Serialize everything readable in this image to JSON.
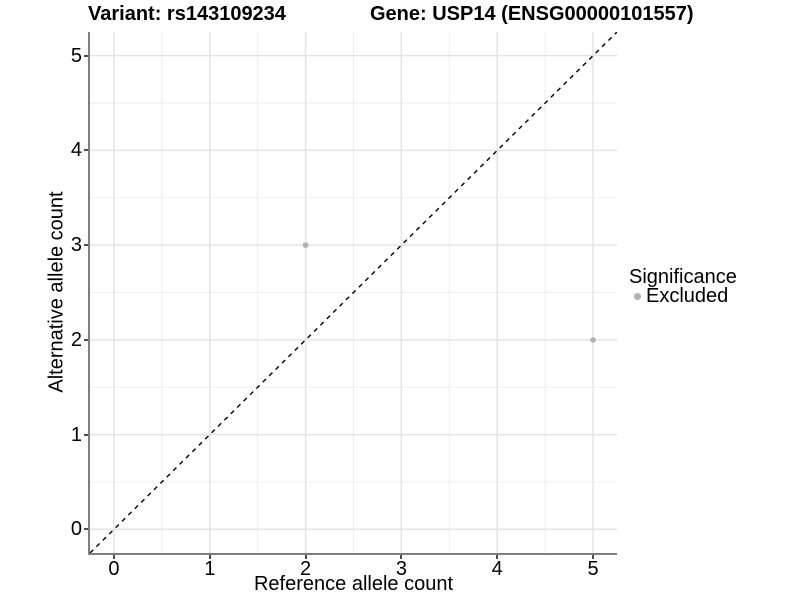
{
  "title": {
    "left": "Variant: rs143109234",
    "right": "Gene: USP14 (ENSG00000101557)"
  },
  "chart_data": {
    "type": "scatter",
    "title": "Variant: rs143109234   Gene: USP14 (ENSG00000101557)",
    "xlabel": "Reference allele count",
    "ylabel": "Alternative allele count",
    "xlim": [
      -0.25,
      5.25
    ],
    "ylim": [
      -0.25,
      5.25
    ],
    "x_ticks": [
      0,
      1,
      2,
      3,
      4,
      5
    ],
    "y_ticks": [
      0,
      1,
      2,
      3,
      4,
      5
    ],
    "minor_gridlines": [
      0.5,
      1.5,
      2.5,
      3.5,
      4.5
    ],
    "grid": "major+minor",
    "series": [
      {
        "name": "Excluded",
        "points": [
          {
            "x": 2,
            "y": 3
          },
          {
            "x": 5,
            "y": 2
          }
        ]
      }
    ],
    "identity_line": {
      "style": "dashed",
      "from": [
        -0.25,
        -0.25
      ],
      "to": [
        5.25,
        5.25
      ]
    },
    "legend": {
      "title": "Significance",
      "position": "right",
      "items": [
        {
          "label": "Excluded",
          "color": "#b0b0b0"
        }
      ]
    }
  },
  "colors": {
    "background": "#ffffff",
    "point": "#b0b0b0",
    "grid_major": "#e4e4e4",
    "grid_minor": "#eeeeee",
    "axis_line": "#7f7f7f",
    "tick_mark": "#4d4d4d",
    "text": "#000000",
    "identity_line": "#000000"
  }
}
